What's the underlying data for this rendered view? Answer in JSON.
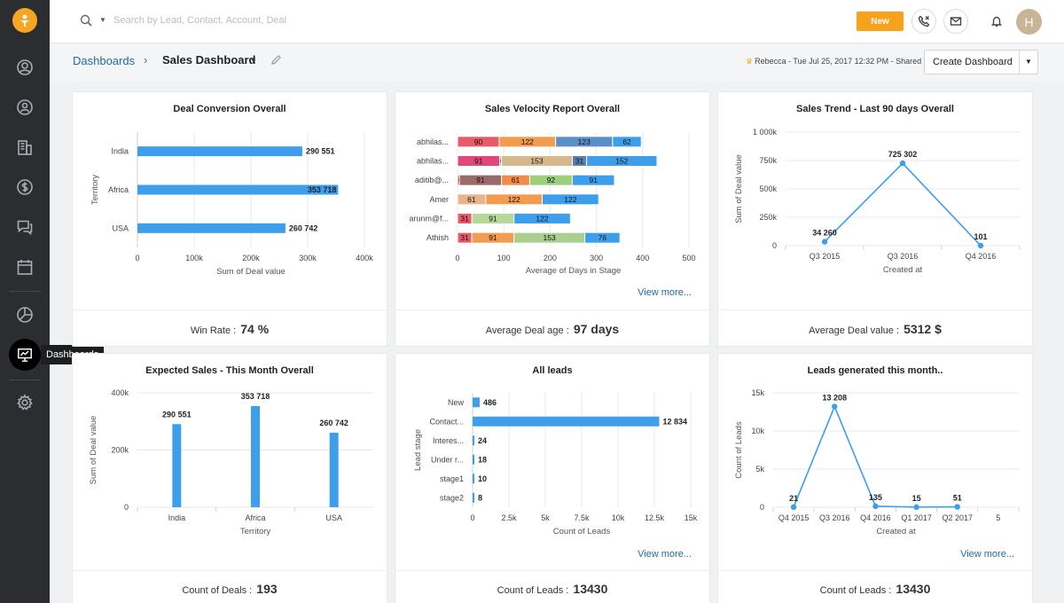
{
  "search": {
    "placeholder": "Search by Lead, Contact, Account, Deal"
  },
  "topbar": {
    "new_label": "New",
    "avatar_initial": "H"
  },
  "sidebar": {
    "tooltip": "Dashboards"
  },
  "breadcrumb": {
    "parent": "Dashboards",
    "current": "Sales Dashboard"
  },
  "shared_info": "Rebecca - Tue Jul 25, 2017 12:32 PM - Shared",
  "create_dashboard_label": "Create Dashboard",
  "cards": {
    "deal_conversion": {
      "title": "Deal Conversion Overall",
      "footer_label": "Win Rate :",
      "footer_value": "74 %"
    },
    "sales_velocity": {
      "title": "Sales Velocity Report Overall",
      "view_more": "View more...",
      "footer_label": "Average Deal age :",
      "footer_value": "97 days"
    },
    "sales_trend": {
      "title": "Sales Trend - Last 90 days Overall",
      "footer_label": "Average Deal value :",
      "footer_value": "5312 $"
    },
    "expected_sales": {
      "title": "Expected Sales - This Month Overall",
      "footer_label": "Count of Deals :",
      "footer_value": "193"
    },
    "all_leads": {
      "title": "All leads",
      "view_more": "View more...",
      "footer_label": "Count of Leads :",
      "footer_value": "13430"
    },
    "leads_generated": {
      "title": "Leads generated this month..",
      "view_more": "View more...",
      "footer_label": "Count of Leads :",
      "footer_value": "13430"
    }
  },
  "chart_data": [
    {
      "id": "deal_conversion",
      "type": "bar",
      "orientation": "horizontal",
      "categories": [
        "India",
        "Africa",
        "USA"
      ],
      "values": [
        290551,
        353718,
        260742
      ],
      "value_labels": [
        "290 551",
        "353 718",
        "260 742"
      ],
      "xlabel": "Sum of Deal value",
      "ylabel": "Territory",
      "xlim": [
        0,
        400000
      ],
      "xticks": [
        "0",
        "100k",
        "200k",
        "300k",
        "400k"
      ],
      "color": "#3d9fec"
    },
    {
      "id": "sales_velocity",
      "type": "bar",
      "orientation": "horizontal",
      "stacked": true,
      "categories": [
        "abhilas...",
        "abhilas...",
        "aditib@...",
        "Amer",
        "arunm@f...",
        "Athish"
      ],
      "rows": [
        [
          90,
          122,
          123,
          62
        ],
        [
          91,
          0,
          153,
          31,
          152
        ],
        [
          0,
          91,
          61,
          92,
          91
        ],
        [
          61,
          122,
          122
        ],
        [
          31,
          91,
          122
        ],
        [
          31,
          91,
          153,
          76
        ]
      ],
      "segment_colors": [
        [
          "#e85a6a",
          "#f39b4f",
          "#5b8fc9",
          "#3d9fec"
        ],
        [
          "#e0487c",
          "#e8b48a",
          "#d7b88c",
          "#5b7fb0",
          "#3d9fec"
        ],
        [
          "#e85a6a",
          "#9b6b6b",
          "#f08c4a",
          "#9ccf7c",
          "#3d9fec"
        ],
        [
          "#e8b48a",
          "#f39b4f",
          "#3d9fec"
        ],
        [
          "#e85a6a",
          "#b7d89a",
          "#3d9fec"
        ],
        [
          "#e85a6a",
          "#f39b4f",
          "#a9d08e",
          "#3d9fec"
        ]
      ],
      "xlabel": "Average of Days in Stage",
      "xlim": [
        0,
        500
      ],
      "xticks": [
        "0",
        "100",
        "200",
        "300",
        "400",
        "500"
      ]
    },
    {
      "id": "sales_trend",
      "type": "line",
      "x": [
        "Q3 2015",
        "Q3 2016",
        "Q4 2016"
      ],
      "y": [
        34260,
        725302,
        101
      ],
      "point_labels": [
        "34 260",
        "725 302",
        "101"
      ],
      "xlabel": "Created at",
      "ylabel": "Sum of Deal value",
      "ylim": [
        0,
        1000000
      ],
      "yticks": [
        "0",
        "250k",
        "500k",
        "750k",
        "1 000k"
      ],
      "color": "#3d9fec"
    },
    {
      "id": "expected_sales",
      "type": "bar",
      "categories": [
        "India",
        "Africa",
        "USA"
      ],
      "values": [
        290551,
        353718,
        260742
      ],
      "value_labels": [
        "290 551",
        "353 718",
        "260 742"
      ],
      "xlabel": "Territory",
      "ylabel": "Sum of Deal value",
      "ylim": [
        0,
        400000
      ],
      "yticks": [
        "0",
        "200k",
        "400k"
      ],
      "color": "#3d9fec"
    },
    {
      "id": "all_leads",
      "type": "bar",
      "orientation": "horizontal",
      "categories": [
        "New",
        "Contact...",
        "Interes...",
        "Under r...",
        "stage1",
        "stage2"
      ],
      "values": [
        486,
        12834,
        24,
        18,
        10,
        8
      ],
      "value_labels": [
        "486",
        "12 834",
        "24",
        "18",
        "10",
        "8"
      ],
      "xlabel": "Count of Leads",
      "ylabel": "Lead stage",
      "xlim": [
        0,
        15000
      ],
      "xticks": [
        "0",
        "2.5k",
        "5k",
        "7.5k",
        "10k",
        "12.5k",
        "15k"
      ],
      "color": "#3d9fec"
    },
    {
      "id": "leads_generated",
      "type": "line",
      "x": [
        "Q4 2015",
        "Q3 2016",
        "Q4 2016",
        "Q1 2017",
        "Q2 2017",
        "5"
      ],
      "y": [
        21,
        13208,
        135,
        15,
        51,
        null
      ],
      "point_labels": [
        "21",
        "13 208",
        "135",
        "15",
        "51",
        ""
      ],
      "xlabel": "Created at",
      "ylabel": "Count of Leads",
      "ylim": [
        0,
        15000
      ],
      "yticks": [
        "0",
        "5k",
        "10k",
        "15k"
      ],
      "color": "#3d9fec"
    }
  ]
}
